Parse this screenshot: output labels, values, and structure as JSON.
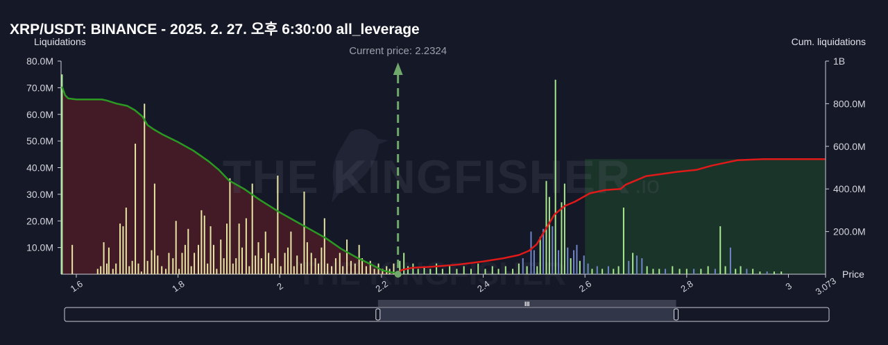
{
  "title": "XRP/USDT: BINANCE - 2025. 2. 27. 오후 6:30:00 all_leverage",
  "left_axis_title": "Liquidations",
  "right_axis_title": "Cum. liquidations",
  "price_axis_title": "Price",
  "current_price_label": "Current price: 2.2324",
  "watermark_text": "THE KINGFISHER",
  "watermark_suffix": ".io",
  "scrollbar_grip": "III",
  "colors": {
    "background": "#151826",
    "long_line": "#2b9a22",
    "short_line": "#e01919",
    "long_fill": "#4a1c28",
    "short_fill": "#1c3a2c",
    "bar_yellow": "#e8e6a2",
    "bar_green": "#a8ea8e",
    "bar_blue": "#6f86c8",
    "current_price": "#6fa86a"
  },
  "chart_data": {
    "type": "bar",
    "title": "XRP/USDT: BINANCE - 2025. 2. 27. 오후 6:30:00 all_leverage",
    "xlabel": "Price",
    "ylabel": "Liquidations",
    "y2label": "Cum. liquidations",
    "xlim": [
      1.57,
      3.073
    ],
    "ylim": [
      0,
      80000000
    ],
    "y2lim": [
      0,
      1000000000
    ],
    "x_ticks": [
      1.6,
      1.8,
      2,
      2.2,
      2.4,
      2.6,
      2.8,
      3,
      3.073
    ],
    "x_tick_labels": [
      "1.6",
      "1.8",
      "2",
      "2.2",
      "2.4",
      "2.6",
      "2.8",
      "3",
      "3.073"
    ],
    "y_ticks": [
      10000000,
      20000000,
      30000000,
      40000000,
      50000000,
      60000000,
      70000000,
      80000000
    ],
    "y_tick_labels": [
      "10.0M",
      "20.0M",
      "30.0M",
      "40.0M",
      "50.0M",
      "60.0M",
      "70.0M",
      "80.0M"
    ],
    "y2_ticks": [
      200000000,
      400000000,
      600000000,
      800000000,
      1000000000
    ],
    "y2_tick_labels": [
      "200.0M",
      "400.0M",
      "600.0M",
      "800.0M",
      "1B"
    ],
    "current_price": 2.2324,
    "bars": [
      {
        "x": 1.572,
        "y": 75,
        "c": "g"
      },
      {
        "x": 1.592,
        "y": 11,
        "c": "y"
      },
      {
        "x": 1.642,
        "y": 2,
        "c": "y"
      },
      {
        "x": 1.648,
        "y": 3,
        "c": "y"
      },
      {
        "x": 1.654,
        "y": 12,
        "c": "y"
      },
      {
        "x": 1.66,
        "y": 4,
        "c": "y"
      },
      {
        "x": 1.664,
        "y": 10,
        "c": "y"
      },
      {
        "x": 1.672,
        "y": 2,
        "c": "y"
      },
      {
        "x": 1.678,
        "y": 4,
        "c": "y"
      },
      {
        "x": 1.686,
        "y": 19,
        "c": "y"
      },
      {
        "x": 1.692,
        "y": 18,
        "c": "y"
      },
      {
        "x": 1.698,
        "y": 25,
        "c": "y"
      },
      {
        "x": 1.704,
        "y": 3,
        "c": "y"
      },
      {
        "x": 1.71,
        "y": 5,
        "c": "y"
      },
      {
        "x": 1.716,
        "y": 49,
        "c": "y"
      },
      {
        "x": 1.722,
        "y": 4,
        "c": "y"
      },
      {
        "x": 1.728,
        "y": 1,
        "c": "y"
      },
      {
        "x": 1.734,
        "y": 64,
        "c": "y"
      },
      {
        "x": 1.74,
        "y": 5,
        "c": "y"
      },
      {
        "x": 1.748,
        "y": 9,
        "c": "y"
      },
      {
        "x": 1.754,
        "y": 34,
        "c": "y"
      },
      {
        "x": 1.76,
        "y": 7,
        "c": "y"
      },
      {
        "x": 1.768,
        "y": 3,
        "c": "y"
      },
      {
        "x": 1.776,
        "y": 2,
        "c": "y"
      },
      {
        "x": 1.782,
        "y": 8,
        "c": "y"
      },
      {
        "x": 1.79,
        "y": 6,
        "c": "y"
      },
      {
        "x": 1.796,
        "y": 20,
        "c": "y"
      },
      {
        "x": 1.802,
        "y": 2,
        "c": "y"
      },
      {
        "x": 1.808,
        "y": 8,
        "c": "y"
      },
      {
        "x": 1.814,
        "y": 11,
        "c": "y"
      },
      {
        "x": 1.82,
        "y": 17,
        "c": "y"
      },
      {
        "x": 1.826,
        "y": 3,
        "c": "y"
      },
      {
        "x": 1.832,
        "y": 8,
        "c": "y"
      },
      {
        "x": 1.84,
        "y": 11,
        "c": "y"
      },
      {
        "x": 1.846,
        "y": 24,
        "c": "y"
      },
      {
        "x": 1.852,
        "y": 22,
        "c": "y"
      },
      {
        "x": 1.858,
        "y": 4,
        "c": "y"
      },
      {
        "x": 1.864,
        "y": 18,
        "c": "y"
      },
      {
        "x": 1.87,
        "y": 11,
        "c": "y"
      },
      {
        "x": 1.876,
        "y": 2,
        "c": "y"
      },
      {
        "x": 1.884,
        "y": 13,
        "c": "y"
      },
      {
        "x": 1.89,
        "y": 6,
        "c": "y"
      },
      {
        "x": 1.896,
        "y": 19,
        "c": "y"
      },
      {
        "x": 1.902,
        "y": 36,
        "c": "y"
      },
      {
        "x": 1.908,
        "y": 4,
        "c": "y"
      },
      {
        "x": 1.914,
        "y": 6,
        "c": "y"
      },
      {
        "x": 1.92,
        "y": 19,
        "c": "y"
      },
      {
        "x": 1.926,
        "y": 10,
        "c": "y"
      },
      {
        "x": 1.934,
        "y": 21,
        "c": "y"
      },
      {
        "x": 1.94,
        "y": 3,
        "c": "y"
      },
      {
        "x": 1.946,
        "y": 34,
        "c": "y"
      },
      {
        "x": 1.952,
        "y": 7,
        "c": "y"
      },
      {
        "x": 1.958,
        "y": 12,
        "c": "y"
      },
      {
        "x": 1.964,
        "y": 6,
        "c": "y"
      },
      {
        "x": 1.972,
        "y": 16,
        "c": "y"
      },
      {
        "x": 1.978,
        "y": 8,
        "c": "y"
      },
      {
        "x": 1.984,
        "y": 4,
        "c": "y"
      },
      {
        "x": 1.99,
        "y": 6,
        "c": "y"
      },
      {
        "x": 1.996,
        "y": 37,
        "c": "y"
      },
      {
        "x": 2.002,
        "y": 3,
        "c": "y"
      },
      {
        "x": 2.01,
        "y": 8,
        "c": "y"
      },
      {
        "x": 2.016,
        "y": 10,
        "c": "y"
      },
      {
        "x": 2.022,
        "y": 16,
        "c": "y"
      },
      {
        "x": 2.028,
        "y": 3,
        "c": "y"
      },
      {
        "x": 2.034,
        "y": 7,
        "c": "y"
      },
      {
        "x": 2.042,
        "y": 4,
        "c": "y"
      },
      {
        "x": 2.048,
        "y": 31,
        "c": "y"
      },
      {
        "x": 2.054,
        "y": 12,
        "c": "y"
      },
      {
        "x": 2.062,
        "y": 8,
        "c": "y"
      },
      {
        "x": 2.07,
        "y": 6,
        "c": "y"
      },
      {
        "x": 2.076,
        "y": 4,
        "c": "y"
      },
      {
        "x": 2.082,
        "y": 10,
        "c": "y"
      },
      {
        "x": 2.088,
        "y": 21,
        "c": "y"
      },
      {
        "x": 2.094,
        "y": 4,
        "c": "y"
      },
      {
        "x": 2.102,
        "y": 3,
        "c": "y"
      },
      {
        "x": 2.11,
        "y": 6,
        "c": "y"
      },
      {
        "x": 2.118,
        "y": 8,
        "c": "y"
      },
      {
        "x": 2.124,
        "y": 3,
        "c": "y"
      },
      {
        "x": 2.132,
        "y": 13,
        "c": "y"
      },
      {
        "x": 2.14,
        "y": 5,
        "c": "y"
      },
      {
        "x": 2.148,
        "y": 4,
        "c": "y"
      },
      {
        "x": 2.156,
        "y": 11,
        "c": "y"
      },
      {
        "x": 2.162,
        "y": 6,
        "c": "y"
      },
      {
        "x": 2.17,
        "y": 3,
        "c": "y"
      },
      {
        "x": 2.178,
        "y": 5,
        "c": "y"
      },
      {
        "x": 2.186,
        "y": 2,
        "c": "y"
      },
      {
        "x": 2.194,
        "y": 4,
        "c": "y"
      },
      {
        "x": 2.202,
        "y": 2,
        "c": "y"
      },
      {
        "x": 2.21,
        "y": 3,
        "c": "y"
      },
      {
        "x": 2.216,
        "y": 2,
        "c": "y"
      },
      {
        "x": 2.224,
        "y": 4,
        "c": "y"
      },
      {
        "x": 2.236,
        "y": 5,
        "c": "g"
      },
      {
        "x": 2.244,
        "y": 8,
        "c": "g"
      },
      {
        "x": 2.252,
        "y": 3,
        "c": "g"
      },
      {
        "x": 2.262,
        "y": 4,
        "c": "g"
      },
      {
        "x": 2.272,
        "y": 2,
        "c": "g"
      },
      {
        "x": 2.284,
        "y": 3,
        "c": "g"
      },
      {
        "x": 2.296,
        "y": 2,
        "c": "g"
      },
      {
        "x": 2.308,
        "y": 4,
        "c": "g"
      },
      {
        "x": 2.32,
        "y": 2,
        "c": "g"
      },
      {
        "x": 2.334,
        "y": 3,
        "c": "g"
      },
      {
        "x": 2.348,
        "y": 2,
        "c": "g"
      },
      {
        "x": 2.362,
        "y": 3,
        "c": "g"
      },
      {
        "x": 2.376,
        "y": 2,
        "c": "g"
      },
      {
        "x": 2.39,
        "y": 4,
        "c": "g"
      },
      {
        "x": 2.404,
        "y": 2,
        "c": "g"
      },
      {
        "x": 2.418,
        "y": 3,
        "c": "g"
      },
      {
        "x": 2.43,
        "y": 2,
        "c": "g"
      },
      {
        "x": 2.444,
        "y": 3,
        "c": "g"
      },
      {
        "x": 2.458,
        "y": 2,
        "c": "g"
      },
      {
        "x": 2.47,
        "y": 4,
        "c": "g"
      },
      {
        "x": 2.478,
        "y": 6,
        "c": "b"
      },
      {
        "x": 2.486,
        "y": 3,
        "c": "g"
      },
      {
        "x": 2.494,
        "y": 16,
        "c": "b"
      },
      {
        "x": 2.5,
        "y": 9,
        "c": "b"
      },
      {
        "x": 2.506,
        "y": 3,
        "c": "g"
      },
      {
        "x": 2.512,
        "y": 14,
        "c": "g"
      },
      {
        "x": 2.518,
        "y": 17,
        "c": "b"
      },
      {
        "x": 2.524,
        "y": 35,
        "c": "g"
      },
      {
        "x": 2.53,
        "y": 29,
        "c": "g"
      },
      {
        "x": 2.536,
        "y": 18,
        "c": "b"
      },
      {
        "x": 2.542,
        "y": 73,
        "c": "g"
      },
      {
        "x": 2.548,
        "y": 9,
        "c": "b"
      },
      {
        "x": 2.554,
        "y": 27,
        "c": "g"
      },
      {
        "x": 2.56,
        "y": 34,
        "c": "g"
      },
      {
        "x": 2.566,
        "y": 10,
        "c": "b"
      },
      {
        "x": 2.572,
        "y": 6,
        "c": "g"
      },
      {
        "x": 2.578,
        "y": 9,
        "c": "b"
      },
      {
        "x": 2.584,
        "y": 11,
        "c": "b"
      },
      {
        "x": 2.59,
        "y": 5,
        "c": "g"
      },
      {
        "x": 2.598,
        "y": 7,
        "c": "b"
      },
      {
        "x": 2.606,
        "y": 4,
        "c": "b"
      },
      {
        "x": 2.614,
        "y": 2,
        "c": "g"
      },
      {
        "x": 2.624,
        "y": 3,
        "c": "b"
      },
      {
        "x": 2.634,
        "y": 2,
        "c": "g"
      },
      {
        "x": 2.646,
        "y": 3,
        "c": "b"
      },
      {
        "x": 2.656,
        "y": 2,
        "c": "g"
      },
      {
        "x": 2.666,
        "y": 3,
        "c": "g"
      },
      {
        "x": 2.676,
        "y": 25,
        "c": "g"
      },
      {
        "x": 2.686,
        "y": 5,
        "c": "b"
      },
      {
        "x": 2.694,
        "y": 8,
        "c": "g"
      },
      {
        "x": 2.702,
        "y": 7,
        "c": "b"
      },
      {
        "x": 2.712,
        "y": 6,
        "c": "b"
      },
      {
        "x": 2.722,
        "y": 3,
        "c": "g"
      },
      {
        "x": 2.734,
        "y": 2,
        "c": "g"
      },
      {
        "x": 2.746,
        "y": 2,
        "c": "g"
      },
      {
        "x": 2.758,
        "y": 2,
        "c": "b"
      },
      {
        "x": 2.772,
        "y": 3,
        "c": "g"
      },
      {
        "x": 2.786,
        "y": 2,
        "c": "g"
      },
      {
        "x": 2.8,
        "y": 2,
        "c": "g"
      },
      {
        "x": 2.814,
        "y": 2,
        "c": "b"
      },
      {
        "x": 2.828,
        "y": 2,
        "c": "g"
      },
      {
        "x": 2.842,
        "y": 3,
        "c": "g"
      },
      {
        "x": 2.856,
        "y": 2,
        "c": "b"
      },
      {
        "x": 2.866,
        "y": 18,
        "c": "g"
      },
      {
        "x": 2.876,
        "y": 3,
        "c": "g"
      },
      {
        "x": 2.886,
        "y": 10,
        "c": "b"
      },
      {
        "x": 2.896,
        "y": 2,
        "c": "g"
      },
      {
        "x": 2.906,
        "y": 3,
        "c": "g"
      },
      {
        "x": 2.918,
        "y": 2,
        "c": "b"
      },
      {
        "x": 2.93,
        "y": 2,
        "c": "g"
      },
      {
        "x": 2.944,
        "y": 1,
        "c": "g"
      },
      {
        "x": 2.958,
        "y": 1,
        "c": "b"
      },
      {
        "x": 2.972,
        "y": 1,
        "c": "g"
      },
      {
        "x": 2.986,
        "y": 1,
        "c": "g"
      }
    ],
    "bar_unit": "M",
    "long_cumulative": [
      [
        1.572,
        880
      ],
      [
        1.578,
        840
      ],
      [
        1.584,
        825
      ],
      [
        1.6,
        820
      ],
      [
        1.65,
        820
      ],
      [
        1.66,
        815
      ],
      [
        1.68,
        800
      ],
      [
        1.7,
        790
      ],
      [
        1.715,
        770
      ],
      [
        1.73,
        740
      ],
      [
        1.74,
        700
      ],
      [
        1.752,
        680
      ],
      [
        1.77,
        655
      ],
      [
        1.8,
        620
      ],
      [
        1.83,
        580
      ],
      [
        1.86,
        530
      ],
      [
        1.88,
        490
      ],
      [
        1.9,
        440
      ],
      [
        1.93,
        400
      ],
      [
        1.96,
        350
      ],
      [
        2.0,
        290
      ],
      [
        2.03,
        250
      ],
      [
        2.06,
        210
      ],
      [
        2.09,
        170
      ],
      [
        2.12,
        120
      ],
      [
        2.15,
        80
      ],
      [
        2.18,
        45
      ],
      [
        2.2,
        20
      ],
      [
        2.215,
        10
      ],
      [
        2.2324,
        5
      ]
    ],
    "short_cumulative": [
      [
        2.2324,
        5
      ],
      [
        2.24,
        20
      ],
      [
        2.26,
        30
      ],
      [
        2.3,
        35
      ],
      [
        2.35,
        45
      ],
      [
        2.4,
        60
      ],
      [
        2.44,
        75
      ],
      [
        2.47,
        90
      ],
      [
        2.49,
        110
      ],
      [
        2.505,
        140
      ],
      [
        2.515,
        180
      ],
      [
        2.525,
        220
      ],
      [
        2.54,
        280
      ],
      [
        2.56,
        320
      ],
      [
        2.58,
        340
      ],
      [
        2.61,
        380
      ],
      [
        2.64,
        395
      ],
      [
        2.67,
        400
      ],
      [
        2.68,
        420
      ],
      [
        2.7,
        440
      ],
      [
        2.72,
        460
      ],
      [
        2.75,
        470
      ],
      [
        2.78,
        480
      ],
      [
        2.82,
        490
      ],
      [
        2.85,
        510
      ],
      [
        2.88,
        525
      ],
      [
        2.9,
        535
      ],
      [
        2.95,
        540
      ],
      [
        3.0,
        540
      ],
      [
        3.072,
        540
      ]
    ],
    "cumulative_unit": "M",
    "zoom_range": [
      0.41,
      0.8
    ]
  }
}
